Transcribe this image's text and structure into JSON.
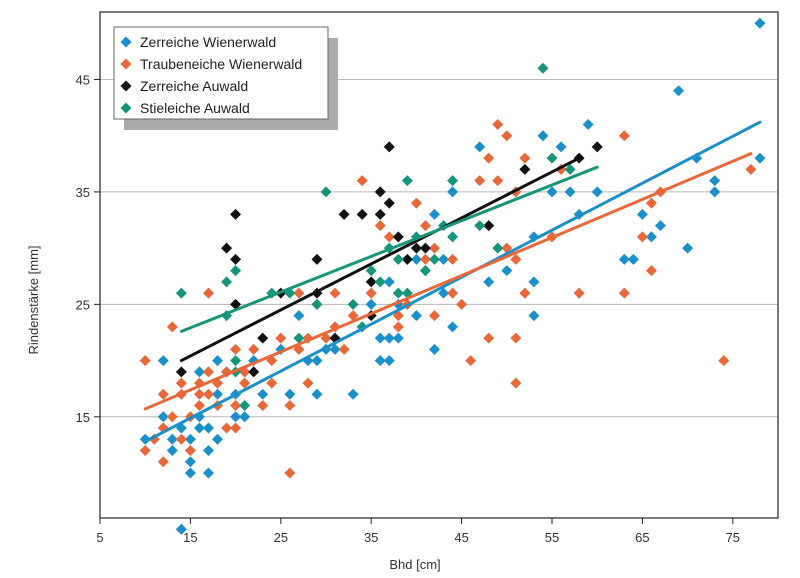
{
  "chart_data": {
    "type": "scatter",
    "title": "",
    "xlabel": "Bhd [cm]",
    "ylabel": "Rindenstärke [mm]",
    "xlim": [
      5,
      80
    ],
    "ylim": [
      6,
      51
    ],
    "xticks": [
      5,
      15,
      25,
      35,
      45,
      55,
      65,
      75
    ],
    "yticks": [
      15,
      25,
      35,
      45
    ],
    "grid": "horizontal",
    "legend_position": "top-left",
    "series": [
      {
        "name": "Zerreiche Wienerwald",
        "color": "#1a8fc8",
        "points": [
          [
            10,
            13
          ],
          [
            12,
            20
          ],
          [
            12,
            15
          ],
          [
            13,
            12
          ],
          [
            13,
            13
          ],
          [
            14,
            5
          ],
          [
            14,
            14
          ],
          [
            15,
            11
          ],
          [
            15,
            10
          ],
          [
            15,
            13
          ],
          [
            16,
            15
          ],
          [
            16,
            19
          ],
          [
            16,
            14
          ],
          [
            17,
            10
          ],
          [
            17,
            12
          ],
          [
            17,
            14
          ],
          [
            18,
            17
          ],
          [
            18,
            20
          ],
          [
            18,
            13
          ],
          [
            19,
            19
          ],
          [
            20,
            17
          ],
          [
            20,
            15
          ],
          [
            21,
            15
          ],
          [
            21,
            19
          ],
          [
            22,
            20
          ],
          [
            23,
            17
          ],
          [
            25,
            21
          ],
          [
            26,
            17
          ],
          [
            27,
            24
          ],
          [
            28,
            20
          ],
          [
            29,
            20
          ],
          [
            29,
            17
          ],
          [
            30,
            21
          ],
          [
            31,
            21
          ],
          [
            33,
            17
          ],
          [
            35,
            25
          ],
          [
            36,
            20
          ],
          [
            36,
            22
          ],
          [
            37,
            20
          ],
          [
            37,
            22
          ],
          [
            37,
            27
          ],
          [
            38,
            22
          ],
          [
            38,
            25
          ],
          [
            40,
            24
          ],
          [
            40,
            29
          ],
          [
            41,
            28
          ],
          [
            42,
            21
          ],
          [
            42,
            33
          ],
          [
            43,
            26
          ],
          [
            43,
            29
          ],
          [
            44,
            23
          ],
          [
            44,
            35
          ],
          [
            47,
            39
          ],
          [
            48,
            27
          ],
          [
            50,
            28
          ],
          [
            51,
            35
          ],
          [
            53,
            24
          ],
          [
            53,
            27
          ],
          [
            53,
            31
          ],
          [
            54,
            40
          ],
          [
            55,
            35
          ],
          [
            56,
            39
          ],
          [
            57,
            35
          ],
          [
            58,
            33
          ],
          [
            59,
            41
          ],
          [
            60,
            35
          ],
          [
            63,
            29
          ],
          [
            64,
            29
          ],
          [
            65,
            33
          ],
          [
            66,
            31
          ],
          [
            67,
            32
          ],
          [
            69,
            44
          ],
          [
            70,
            30
          ],
          [
            71,
            38
          ],
          [
            73,
            35
          ],
          [
            73,
            36
          ],
          [
            78,
            50
          ],
          [
            78,
            38
          ]
        ],
        "trend": [
          [
            10,
            12.8
          ],
          [
            78,
            41.2
          ]
        ]
      },
      {
        "name": "Traubeneiche Wienerwald",
        "color": "#e8683a",
        "points": [
          [
            10,
            20
          ],
          [
            10,
            12
          ],
          [
            11,
            13
          ],
          [
            12,
            11
          ],
          [
            12,
            17
          ],
          [
            12,
            14
          ],
          [
            13,
            23
          ],
          [
            13,
            15
          ],
          [
            14,
            18
          ],
          [
            14,
            17
          ],
          [
            14,
            13
          ],
          [
            15,
            12
          ],
          [
            15,
            15
          ],
          [
            16,
            16
          ],
          [
            16,
            18
          ],
          [
            16,
            17
          ],
          [
            17,
            26
          ],
          [
            17,
            19
          ],
          [
            17,
            17
          ],
          [
            18,
            16
          ],
          [
            18,
            18
          ],
          [
            19,
            14
          ],
          [
            19,
            19
          ],
          [
            20,
            21
          ],
          [
            20,
            16
          ],
          [
            20,
            14
          ],
          [
            21,
            19
          ],
          [
            21,
            18
          ],
          [
            22,
            21
          ],
          [
            23,
            16
          ],
          [
            24,
            18
          ],
          [
            24,
            20
          ],
          [
            25,
            22
          ],
          [
            26,
            16
          ],
          [
            26,
            10
          ],
          [
            27,
            26
          ],
          [
            27,
            21
          ],
          [
            28,
            22
          ],
          [
            28,
            18
          ],
          [
            29,
            25
          ],
          [
            30,
            22
          ],
          [
            31,
            23
          ],
          [
            31,
            26
          ],
          [
            32,
            21
          ],
          [
            33,
            24
          ],
          [
            34,
            23
          ],
          [
            34,
            36
          ],
          [
            35,
            26
          ],
          [
            36,
            32
          ],
          [
            37,
            31
          ],
          [
            38,
            23
          ],
          [
            38,
            24
          ],
          [
            39,
            25
          ],
          [
            40,
            34
          ],
          [
            41,
            29
          ],
          [
            41,
            32
          ],
          [
            42,
            30
          ],
          [
            42,
            24
          ],
          [
            44,
            29
          ],
          [
            44,
            26
          ],
          [
            45,
            25
          ],
          [
            46,
            20
          ],
          [
            47,
            36
          ],
          [
            48,
            22
          ],
          [
            48,
            38
          ],
          [
            49,
            41
          ],
          [
            49,
            36
          ],
          [
            50,
            40
          ],
          [
            50,
            30
          ],
          [
            51,
            35
          ],
          [
            51,
            22
          ],
          [
            51,
            18
          ],
          [
            51,
            29
          ],
          [
            52,
            38
          ],
          [
            52,
            26
          ],
          [
            55,
            31
          ],
          [
            56,
            37
          ],
          [
            58,
            26
          ],
          [
            63,
            40
          ],
          [
            63,
            26
          ],
          [
            65,
            31
          ],
          [
            66,
            34
          ],
          [
            66,
            28
          ],
          [
            67,
            35
          ],
          [
            74,
            20
          ],
          [
            77,
            37
          ]
        ],
        "trend": [
          [
            10,
            15.7
          ],
          [
            77,
            38.4
          ]
        ]
      },
      {
        "name": "Zerreiche Auwald",
        "color": "#111111",
        "points": [
          [
            14,
            19
          ],
          [
            19,
            30
          ],
          [
            20,
            33
          ],
          [
            20,
            29
          ],
          [
            20,
            25
          ],
          [
            22,
            19
          ],
          [
            23,
            22
          ],
          [
            25,
            26
          ],
          [
            29,
            29
          ],
          [
            29,
            26
          ],
          [
            31,
            22
          ],
          [
            32,
            33
          ],
          [
            34,
            33
          ],
          [
            35,
            27
          ],
          [
            35,
            24
          ],
          [
            36,
            35
          ],
          [
            36,
            33
          ],
          [
            37,
            39
          ],
          [
            37,
            34
          ],
          [
            38,
            31
          ],
          [
            39,
            29
          ],
          [
            40,
            30
          ],
          [
            41,
            30
          ],
          [
            48,
            32
          ],
          [
            52,
            37
          ],
          [
            58,
            38
          ],
          [
            60,
            39
          ]
        ],
        "trend": [
          [
            14,
            20
          ],
          [
            58,
            38
          ]
        ]
      },
      {
        "name": "Stieleiche Auwald",
        "color": "#17957a",
        "points": [
          [
            14,
            26
          ],
          [
            19,
            24
          ],
          [
            19,
            27
          ],
          [
            20,
            28
          ],
          [
            20,
            20
          ],
          [
            20,
            19
          ],
          [
            21,
            16
          ],
          [
            24,
            26
          ],
          [
            26,
            26
          ],
          [
            27,
            22
          ],
          [
            29,
            25
          ],
          [
            30,
            35
          ],
          [
            33,
            25
          ],
          [
            34,
            23
          ],
          [
            35,
            28
          ],
          [
            36,
            27
          ],
          [
            37,
            30
          ],
          [
            38,
            29
          ],
          [
            38,
            26
          ],
          [
            39,
            36
          ],
          [
            39,
            26
          ],
          [
            40,
            31
          ],
          [
            41,
            28
          ],
          [
            42,
            29
          ],
          [
            43,
            32
          ],
          [
            44,
            36
          ],
          [
            44,
            31
          ],
          [
            47,
            32
          ],
          [
            49,
            30
          ],
          [
            54,
            46
          ],
          [
            55,
            38
          ],
          [
            57,
            37
          ]
        ],
        "trend": [
          [
            14,
            22.6
          ],
          [
            60,
            37.2
          ]
        ]
      }
    ]
  }
}
